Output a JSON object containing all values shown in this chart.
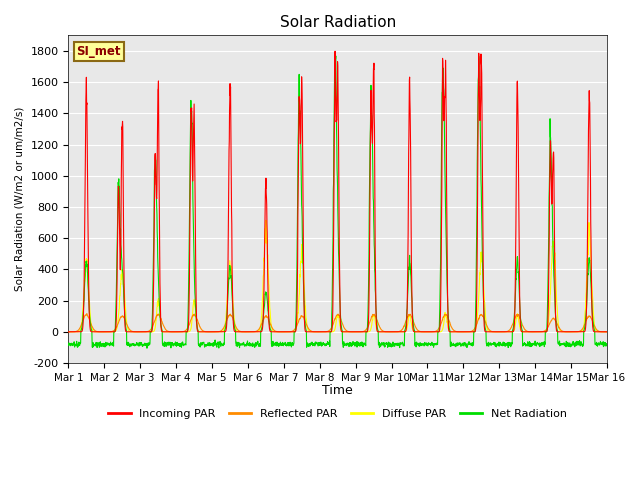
{
  "title": "Solar Radiation",
  "ylabel": "Solar Radiation (W/m2 or um/m2/s)",
  "xlabel": "Time",
  "ylim": [
    -200,
    1900
  ],
  "yticks": [
    -200,
    0,
    200,
    400,
    600,
    800,
    1000,
    1200,
    1400,
    1600,
    1800
  ],
  "xtick_labels": [
    "Mar 1",
    "Mar 2",
    "Mar 3",
    "Mar 4",
    "Mar 5",
    "Mar 6",
    "Mar 7",
    "Mar 8",
    "Mar 9",
    "Mar 10",
    "Mar 11",
    "Mar 12",
    "Mar 13",
    "Mar 14",
    "Mar 15",
    "Mar 16"
  ],
  "station_label": "SI_met",
  "colors": {
    "incoming": "#ff0000",
    "reflected": "#ff8c00",
    "diffuse": "#ffff00",
    "net": "#00dd00",
    "background": "#e8e8e8"
  },
  "legend": [
    "Incoming PAR",
    "Reflected PAR",
    "Diffuse PAR",
    "Net Radiation"
  ],
  "days": 15,
  "net_nighttime": -80
}
